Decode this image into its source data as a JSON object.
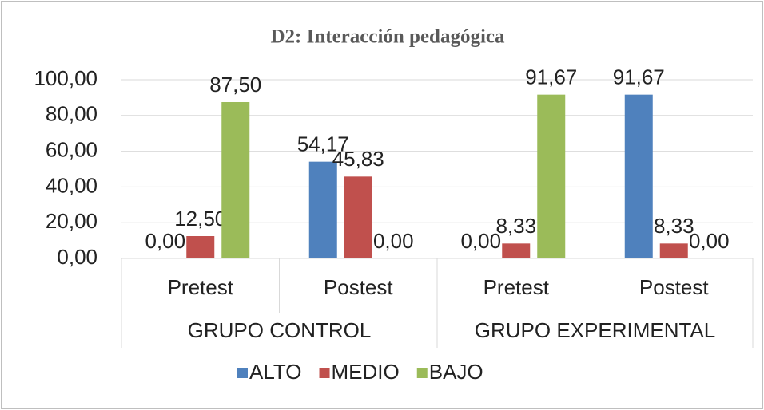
{
  "chart_data": {
    "type": "bar",
    "title": "D2: Interacción pedagógica",
    "categories": [
      "Pretest",
      "Postest",
      "Pretest",
      "Postest"
    ],
    "group_labels": [
      "GRUPO CONTROL",
      "GRUPO EXPERIMENTAL"
    ],
    "series": [
      {
        "name": "ALTO",
        "color": "#4f81bd",
        "values": [
          0,
          54.17,
          0,
          91.67
        ],
        "value_labels": [
          "0,00",
          "54,17",
          "0,00",
          "91,67"
        ]
      },
      {
        "name": "MEDIO",
        "color": "#c0504d",
        "values": [
          12.5,
          45.83,
          8.33,
          8.33
        ],
        "value_labels": [
          "12,50",
          "45,83",
          "8,33",
          "8,33"
        ]
      },
      {
        "name": "BAJO",
        "color": "#9bbb59",
        "values": [
          87.5,
          0,
          91.67,
          0
        ],
        "value_labels": [
          "87,50",
          "0,00",
          "91,67",
          "0,00"
        ]
      }
    ],
    "ylim": [
      0,
      100
    ],
    "yticks": [
      {
        "value": 0,
        "label": "0,00"
      },
      {
        "value": 20,
        "label": "20,00"
      },
      {
        "value": 40,
        "label": "40,00"
      },
      {
        "value": 60,
        "label": "60,00"
      },
      {
        "value": 80,
        "label": "80,00"
      },
      {
        "value": 100,
        "label": "100,00"
      }
    ],
    "grid": true,
    "legend": "bottom"
  }
}
